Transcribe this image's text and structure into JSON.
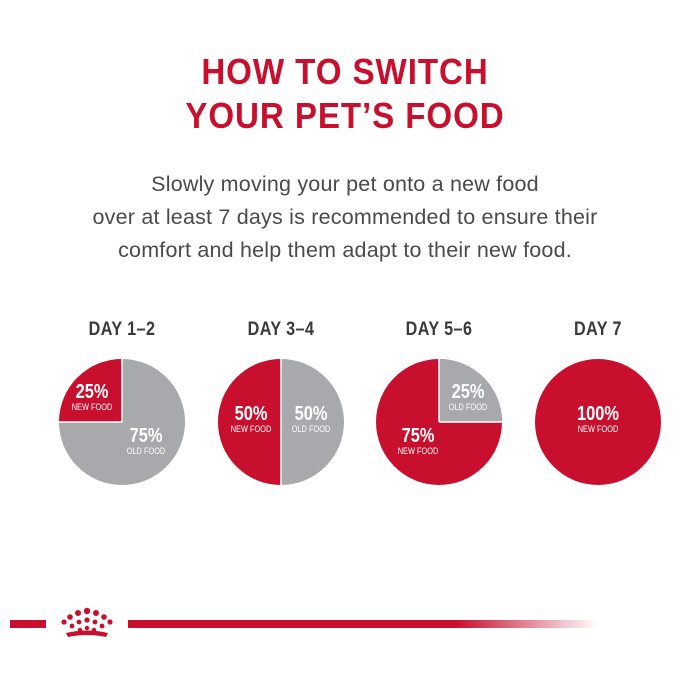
{
  "title": {
    "line1": "HOW TO SWITCH",
    "line2": "YOUR PET’S FOOD"
  },
  "subtitle": {
    "line1": "Slowly moving your pet onto a new food",
    "line2": "over at least 7 days is recommended to ensure their",
    "line3": "comfort and help them adapt to their new food."
  },
  "colors": {
    "new_food": "#c8102e",
    "old_food": "#a7a9ac",
    "text": "#4a4a4a"
  },
  "days": [
    {
      "label": "DAY 1–2",
      "new_pct": 25,
      "old_pct": 75,
      "new_text": "25%",
      "new_label": "NEW FOOD",
      "old_text": "75%",
      "old_label": "OLD FOOD"
    },
    {
      "label": "DAY 3–4",
      "new_pct": 50,
      "old_pct": 50,
      "new_text": "50%",
      "new_label": "NEW FOOD",
      "old_text": "50%",
      "old_label": "OLD FOOD"
    },
    {
      "label": "DAY 5–6",
      "new_pct": 75,
      "old_pct": 25,
      "new_text": "75%",
      "new_label": "NEW FOOD",
      "old_text": "25%",
      "old_label": "OLD FOOD"
    },
    {
      "label": "DAY 7",
      "new_pct": 100,
      "old_pct": 0,
      "new_text": "100%",
      "new_label": "NEW FOOD"
    }
  ],
  "logo": "royal-canin-crown-icon"
}
